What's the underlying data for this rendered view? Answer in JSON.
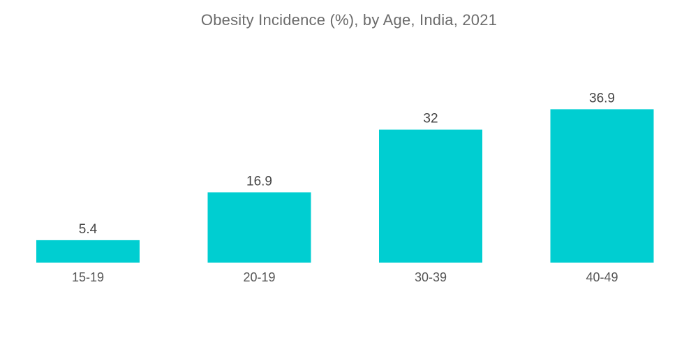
{
  "chart_data": {
    "type": "bar",
    "title": "Obesity Incidence (%), by Age, India, 2021",
    "categories": [
      "15-19",
      "20-19",
      "30-39",
      "40-49"
    ],
    "values": [
      5.4,
      16.9,
      32,
      36.9
    ],
    "value_labels": [
      "5.4",
      "16.9",
      "32",
      "36.9"
    ],
    "xlabel": "",
    "ylabel": "",
    "ylim": [
      0,
      40
    ],
    "grid": false,
    "legend": "none",
    "bar_color": "#00CED1"
  }
}
